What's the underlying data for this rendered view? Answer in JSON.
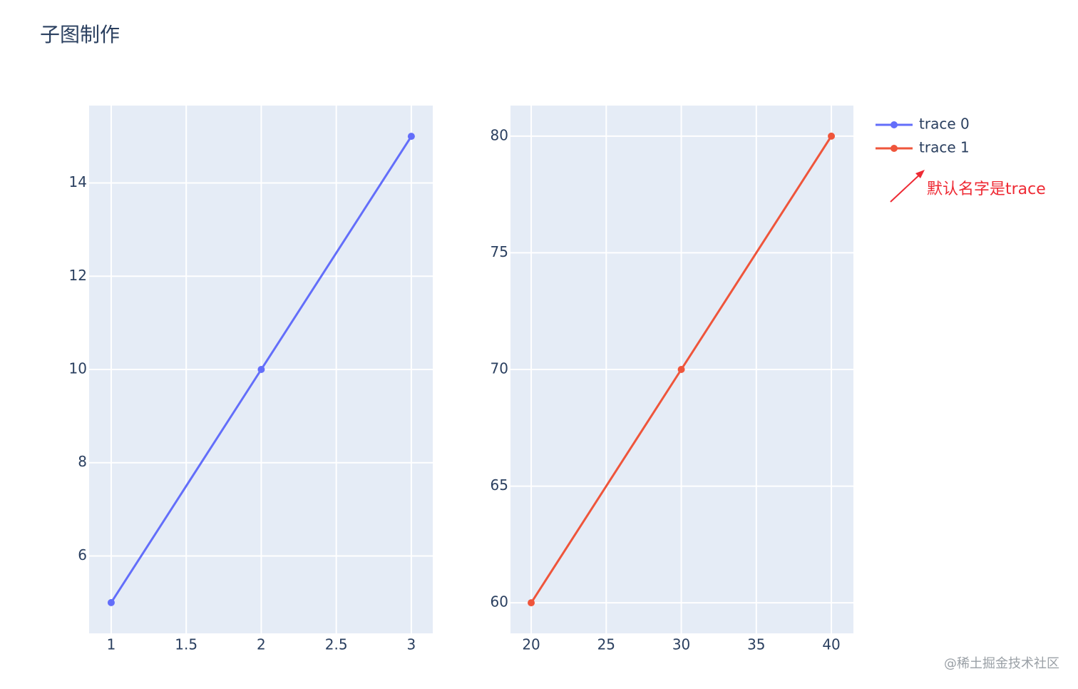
{
  "title": "子图制作",
  "annotation": "默认名字是trace",
  "watermark": "@稀土掘金技术社区",
  "chart_data": [
    {
      "type": "line",
      "x": [
        1,
        2,
        3
      ],
      "series": [
        {
          "name": "trace 0",
          "color": "#636efa",
          "values": [
            5,
            10,
            15
          ]
        }
      ],
      "xlim": [
        0.853,
        3.143
      ],
      "ylim": [
        4.34,
        15.66
      ],
      "xticks": [
        1,
        1.5,
        2,
        2.5,
        3
      ],
      "yticks": [
        6,
        8,
        10,
        12,
        14
      ],
      "grid": true
    },
    {
      "type": "line",
      "x": [
        20,
        30,
        40
      ],
      "series": [
        {
          "name": "trace 1",
          "color": "#ef553b",
          "values": [
            60,
            70,
            80
          ]
        }
      ],
      "xlim": [
        18.62,
        41.47
      ],
      "ylim": [
        58.69,
        81.31
      ],
      "xticks": [
        20,
        25,
        30,
        35,
        40
      ],
      "yticks": [
        60,
        65,
        70,
        75,
        80
      ],
      "grid": true
    }
  ]
}
